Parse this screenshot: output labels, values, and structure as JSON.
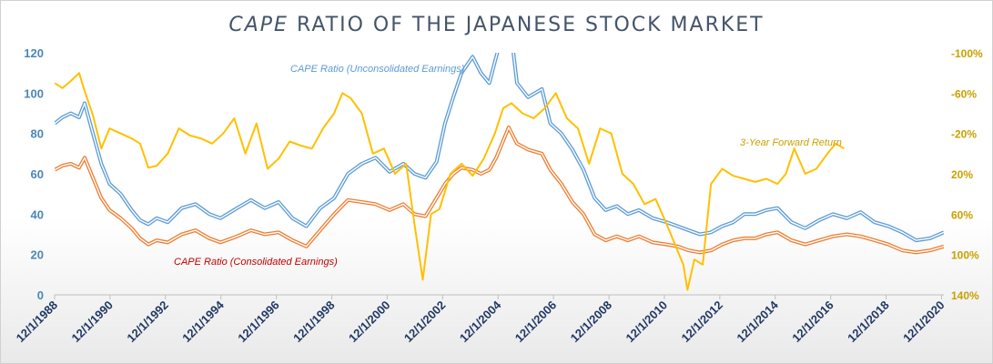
{
  "title": {
    "italic_part": "CAPE",
    "rest": "RATIO OF THE JAPANESE STOCK MARKET"
  },
  "chart_data": {
    "type": "line",
    "title": "CAPE RATIO OF THE JAPANESE STOCK MARKET",
    "y_left": {
      "range": [
        0,
        120
      ],
      "ticks": [
        0,
        20,
        40,
        60,
        80,
        100,
        120
      ]
    },
    "y_right": {
      "range": [
        -100,
        140
      ],
      "inverted": true,
      "tick_values": [
        -100,
        -60,
        -20,
        20,
        60,
        100,
        140
      ],
      "tick_labels": [
        "-100%",
        "-60%",
        "-20%",
        "20%",
        "60%",
        "100%",
        "140%"
      ]
    },
    "x_range": [
      1988.917,
      2021.0
    ],
    "x_ticks": [
      1988.917,
      1990.917,
      1992.917,
      1994.917,
      1996.917,
      1998.917,
      2000.917,
      2002.917,
      2004.917,
      2006.917,
      2008.917,
      2010.917,
      2012.917,
      2014.917,
      2016.917,
      2018.917,
      2020.917
    ],
    "x_tick_labels": [
      "12/1/1988",
      "12/1/1990",
      "12/1/1992",
      "12/1/1994",
      "12/1/1996",
      "12/1/1998",
      "12/1/2000",
      "12/1/2002",
      "12/1/2004",
      "12/1/2006",
      "12/1/2008",
      "12/1/2010",
      "12/1/2012",
      "12/1/2014",
      "12/1/2016",
      "12/1/2018",
      "12/1/2020"
    ],
    "grid": false,
    "series": [
      {
        "name": "CAPE Ratio (Unconsolidated Earnings)",
        "axis": "left",
        "color": "#5b9bd5",
        "x": [
          1988.92,
          1989.2,
          1989.5,
          1989.8,
          1990.0,
          1990.3,
          1990.6,
          1990.9,
          1991.3,
          1991.7,
          1992.0,
          1992.3,
          1992.6,
          1993.0,
          1993.5,
          1994.0,
          1994.5,
          1994.9,
          1995.5,
          1996.0,
          1996.5,
          1997.0,
          1997.5,
          1998.0,
          1998.5,
          1999.0,
          1999.5,
          2000.0,
          2000.5,
          2001.0,
          2001.5,
          2001.9,
          2002.3,
          2002.7,
          2003.0,
          2003.3,
          2003.6,
          2004.0,
          2004.3,
          2004.6,
          2004.85,
          2005.3,
          2005.6,
          2006.0,
          2006.5,
          2006.8,
          2007.2,
          2007.6,
          2008.0,
          2008.4,
          2008.8,
          2009.2,
          2009.6,
          2010.0,
          2010.5,
          2011.0,
          2011.4,
          2011.8,
          2012.2,
          2012.6,
          2013.0,
          2013.4,
          2013.8,
          2014.2,
          2014.6,
          2015.0,
          2015.5,
          2016.0,
          2016.5,
          2017.0,
          2017.5,
          2018.0,
          2018.5,
          2019.0,
          2019.5,
          2020.0,
          2020.5,
          2021.0
        ],
        "values": [
          85,
          88,
          90,
          88,
          95,
          80,
          65,
          55,
          50,
          42,
          37,
          35,
          38,
          36,
          43,
          45,
          40,
          38,
          43,
          47,
          43,
          46,
          38,
          34,
          43,
          48,
          60,
          65,
          68,
          61,
          65,
          60,
          58,
          66,
          85,
          98,
          110,
          118,
          110,
          105,
          118,
          140,
          105,
          98,
          102,
          85,
          80,
          72,
          62,
          48,
          42,
          44,
          40,
          42,
          38,
          36,
          34,
          32,
          30,
          31,
          34,
          36,
          40,
          40,
          42,
          43,
          36,
          33,
          37,
          40,
          38,
          41,
          36,
          34,
          31,
          27,
          28,
          31
        ]
      },
      {
        "name": "CAPE Ratio (Consolidated Earnings)",
        "axis": "left",
        "color": "#ed7d31",
        "x": [
          1988.92,
          1989.2,
          1989.5,
          1989.8,
          1990.0,
          1990.3,
          1990.6,
          1990.9,
          1991.3,
          1991.7,
          1992.0,
          1992.3,
          1992.6,
          1993.0,
          1993.5,
          1994.0,
          1994.5,
          1994.9,
          1995.5,
          1996.0,
          1996.5,
          1997.0,
          1997.5,
          1998.0,
          1998.5,
          1999.0,
          1999.5,
          2000.0,
          2000.5,
          2001.0,
          2001.5,
          2001.9,
          2002.3,
          2002.7,
          2003.0,
          2003.3,
          2003.6,
          2004.0,
          2004.3,
          2004.6,
          2004.85,
          2005.3,
          2005.6,
          2006.0,
          2006.5,
          2006.8,
          2007.2,
          2007.6,
          2008.0,
          2008.4,
          2008.8,
          2009.2,
          2009.6,
          2010.0,
          2010.5,
          2011.0,
          2011.4,
          2011.8,
          2012.2,
          2012.6,
          2013.0,
          2013.4,
          2013.8,
          2014.2,
          2014.6,
          2015.0,
          2015.5,
          2016.0,
          2016.5,
          2017.0,
          2017.5,
          2018.0,
          2018.5,
          2019.0,
          2019.5,
          2020.0,
          2020.5,
          2021.0
        ],
        "values": [
          62,
          64,
          65,
          63,
          68,
          58,
          48,
          42,
          38,
          33,
          28,
          25,
          27,
          26,
          30,
          32,
          28,
          26,
          29,
          32,
          30,
          31,
          27,
          24,
          32,
          40,
          47,
          46,
          45,
          42,
          45,
          40,
          39,
          48,
          55,
          60,
          63,
          62,
          60,
          62,
          68,
          83,
          75,
          72,
          70,
          62,
          55,
          46,
          40,
          30,
          27,
          29,
          27,
          29,
          26,
          25,
          24,
          22,
          21,
          22,
          25,
          27,
          28,
          28,
          30,
          31,
          27,
          25,
          27,
          29,
          30,
          29,
          27,
          25,
          22,
          21,
          22,
          24
        ]
      },
      {
        "name": "3-Year Forward Return",
        "axis": "right",
        "color": "#ffc000",
        "x": [
          1988.92,
          1989.2,
          1989.5,
          1989.8,
          1990.0,
          1990.3,
          1990.6,
          1990.9,
          1991.3,
          1991.7,
          1992.0,
          1992.3,
          1992.6,
          1993.0,
          1993.4,
          1993.8,
          1994.2,
          1994.6,
          1995.0,
          1995.4,
          1995.8,
          1996.2,
          1996.6,
          1997.0,
          1997.4,
          1997.8,
          1998.2,
          1998.6,
          1999.0,
          1999.3,
          1999.6,
          2000.0,
          2000.4,
          2000.8,
          2001.2,
          2001.6,
          2001.9,
          2002.2,
          2002.5,
          2002.8,
          2003.2,
          2003.6,
          2004.0,
          2004.4,
          2004.8,
          2005.1,
          2005.4,
          2005.8,
          2006.2,
          2006.6,
          2007.0,
          2007.4,
          2007.8,
          2008.2,
          2008.6,
          2009.0,
          2009.4,
          2009.8,
          2010.2,
          2010.6,
          2011.0,
          2011.3,
          2011.6,
          2011.75,
          2012.0,
          2012.3,
          2012.6,
          2013.0,
          2013.4,
          2013.8,
          2014.2,
          2014.6,
          2015.0,
          2015.3,
          2015.6,
          2016.0,
          2016.4,
          2016.8,
          2017.1,
          2017.4
        ],
        "values": [
          -70,
          -65,
          -72,
          -80,
          -62,
          -38,
          -5,
          -25,
          -20,
          -15,
          -10,
          14,
          12,
          0,
          -25,
          -18,
          -15,
          -10,
          -20,
          -35,
          0,
          -30,
          15,
          5,
          -12,
          -8,
          -5,
          -25,
          -40,
          -60,
          -55,
          -40,
          0,
          -5,
          20,
          10,
          70,
          125,
          60,
          55,
          20,
          10,
          22,
          5,
          -20,
          -45,
          -50,
          -40,
          -35,
          -45,
          -60,
          -35,
          -25,
          10,
          -25,
          -20,
          20,
          30,
          50,
          45,
          70,
          90,
          110,
          135,
          105,
          110,
          30,
          15,
          22,
          25,
          28,
          25,
          30,
          20,
          -5,
          20,
          15,
          0,
          -10,
          -5
        ]
      }
    ],
    "annotations": [
      {
        "text": "CAPE Ratio (Unconsolidated Earnings)",
        "color": "#5b9bd5"
      },
      {
        "text": "CAPE Ratio (Consolidated Earnings)",
        "color": "#c00000"
      },
      {
        "text": "3-Year Forward Return",
        "color": "#c9a000"
      }
    ]
  }
}
